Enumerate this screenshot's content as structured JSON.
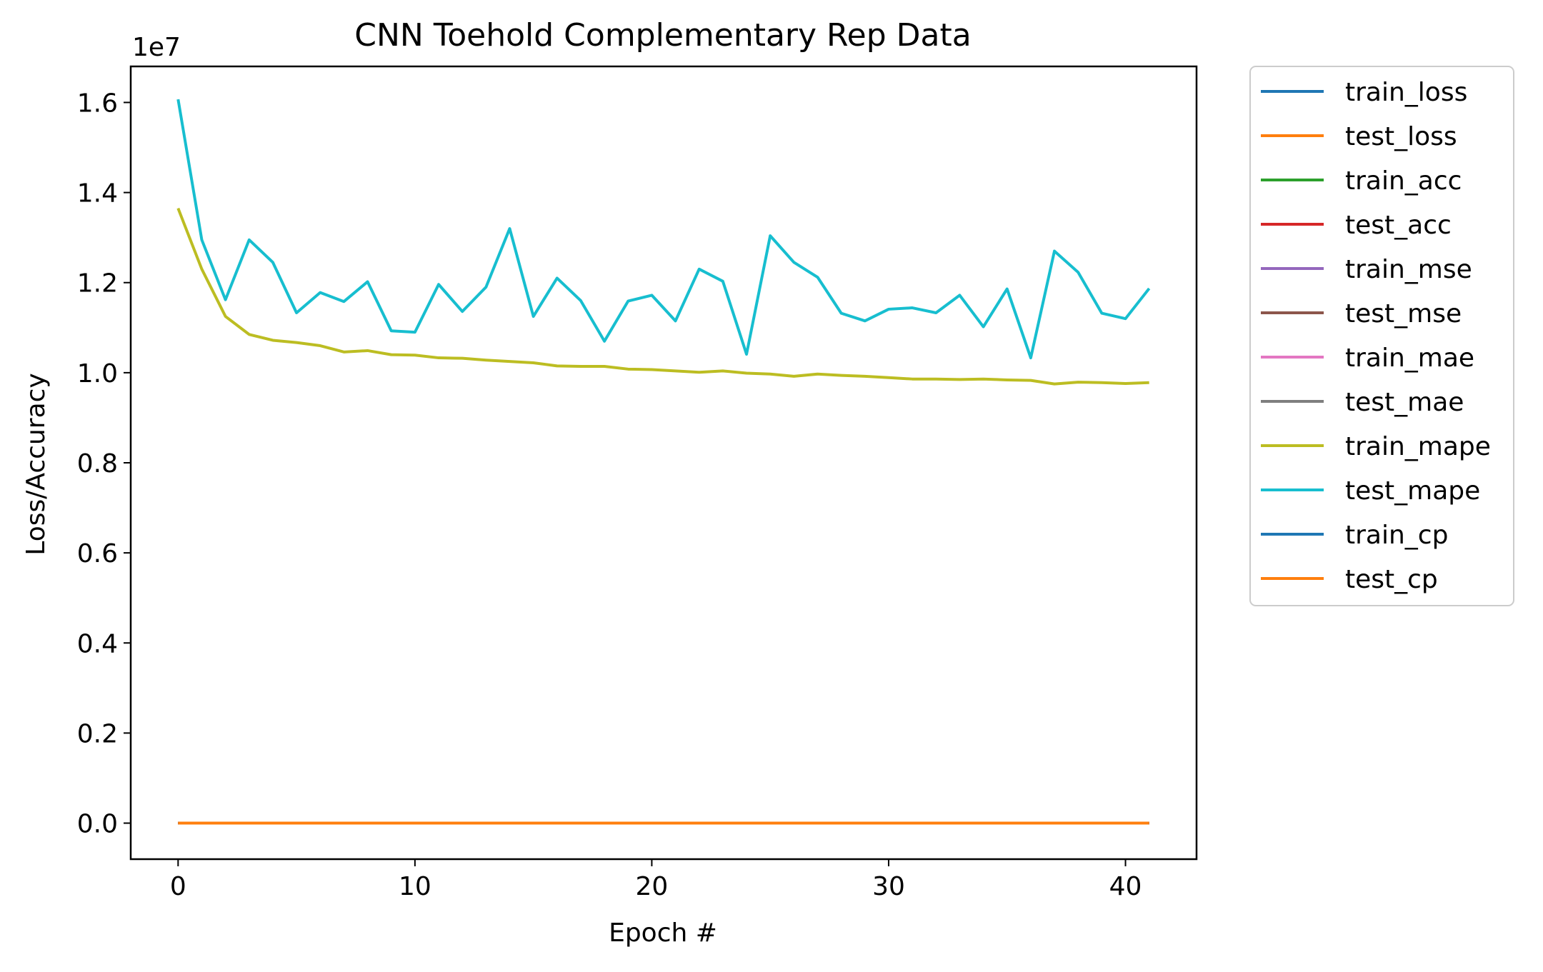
{
  "chart_data": {
    "type": "line",
    "title": "CNN Toehold Complementary Rep Data",
    "xlabel": "Epoch #",
    "ylabel": "Loss/Accuracy",
    "y_offset_label": "1e7",
    "xlim": [
      -2,
      43
    ],
    "ylim": [
      -0.08,
      1.68
    ],
    "x_ticks": [
      0,
      10,
      20,
      30,
      40
    ],
    "x_tick_labels": [
      "0",
      "10",
      "20",
      "30",
      "40"
    ],
    "y_ticks": [
      0.0,
      0.2,
      0.4,
      0.6,
      0.8,
      1.0,
      1.2,
      1.4,
      1.6
    ],
    "y_tick_labels": [
      "0.0",
      "0.2",
      "0.4",
      "0.6",
      "0.8",
      "1.0",
      "1.2",
      "1.4",
      "1.6"
    ],
    "grid": false,
    "legend_position": "outside-right-top",
    "x": [
      0,
      1,
      2,
      3,
      4,
      5,
      6,
      7,
      8,
      9,
      10,
      11,
      12,
      13,
      14,
      15,
      16,
      17,
      18,
      19,
      20,
      21,
      22,
      23,
      24,
      25,
      26,
      27,
      28,
      29,
      30,
      31,
      32,
      33,
      34,
      35,
      36,
      37,
      38,
      39,
      40,
      41
    ],
    "series": [
      {
        "name": "train_loss",
        "color": "#1f77b4",
        "values": [
          0,
          0,
          0,
          0,
          0,
          0,
          0,
          0,
          0,
          0,
          0,
          0,
          0,
          0,
          0,
          0,
          0,
          0,
          0,
          0,
          0,
          0,
          0,
          0,
          0,
          0,
          0,
          0,
          0,
          0,
          0,
          0,
          0,
          0,
          0,
          0,
          0,
          0,
          0,
          0,
          0,
          0
        ]
      },
      {
        "name": "test_loss",
        "color": "#ff7f0e",
        "values": [
          0,
          0,
          0,
          0,
          0,
          0,
          0,
          0,
          0,
          0,
          0,
          0,
          0,
          0,
          0,
          0,
          0,
          0,
          0,
          0,
          0,
          0,
          0,
          0,
          0,
          0,
          0,
          0,
          0,
          0,
          0,
          0,
          0,
          0,
          0,
          0,
          0,
          0,
          0,
          0,
          0,
          0
        ]
      },
      {
        "name": "train_acc",
        "color": "#2ca02c",
        "values": [
          0,
          0,
          0,
          0,
          0,
          0,
          0,
          0,
          0,
          0,
          0,
          0,
          0,
          0,
          0,
          0,
          0,
          0,
          0,
          0,
          0,
          0,
          0,
          0,
          0,
          0,
          0,
          0,
          0,
          0,
          0,
          0,
          0,
          0,
          0,
          0,
          0,
          0,
          0,
          0,
          0,
          0
        ]
      },
      {
        "name": "test_acc",
        "color": "#d62728",
        "values": [
          0,
          0,
          0,
          0,
          0,
          0,
          0,
          0,
          0,
          0,
          0,
          0,
          0,
          0,
          0,
          0,
          0,
          0,
          0,
          0,
          0,
          0,
          0,
          0,
          0,
          0,
          0,
          0,
          0,
          0,
          0,
          0,
          0,
          0,
          0,
          0,
          0,
          0,
          0,
          0,
          0,
          0
        ]
      },
      {
        "name": "train_mse",
        "color": "#9467bd",
        "values": [
          0,
          0,
          0,
          0,
          0,
          0,
          0,
          0,
          0,
          0,
          0,
          0,
          0,
          0,
          0,
          0,
          0,
          0,
          0,
          0,
          0,
          0,
          0,
          0,
          0,
          0,
          0,
          0,
          0,
          0,
          0,
          0,
          0,
          0,
          0,
          0,
          0,
          0,
          0,
          0,
          0,
          0
        ]
      },
      {
        "name": "test_mse",
        "color": "#8c564b",
        "values": [
          0,
          0,
          0,
          0,
          0,
          0,
          0,
          0,
          0,
          0,
          0,
          0,
          0,
          0,
          0,
          0,
          0,
          0,
          0,
          0,
          0,
          0,
          0,
          0,
          0,
          0,
          0,
          0,
          0,
          0,
          0,
          0,
          0,
          0,
          0,
          0,
          0,
          0,
          0,
          0,
          0,
          0
        ]
      },
      {
        "name": "train_mae",
        "color": "#e377c2",
        "values": [
          0,
          0,
          0,
          0,
          0,
          0,
          0,
          0,
          0,
          0,
          0,
          0,
          0,
          0,
          0,
          0,
          0,
          0,
          0,
          0,
          0,
          0,
          0,
          0,
          0,
          0,
          0,
          0,
          0,
          0,
          0,
          0,
          0,
          0,
          0,
          0,
          0,
          0,
          0,
          0,
          0,
          0
        ]
      },
      {
        "name": "test_mae",
        "color": "#7f7f7f",
        "values": [
          0,
          0,
          0,
          0,
          0,
          0,
          0,
          0,
          0,
          0,
          0,
          0,
          0,
          0,
          0,
          0,
          0,
          0,
          0,
          0,
          0,
          0,
          0,
          0,
          0,
          0,
          0,
          0,
          0,
          0,
          0,
          0,
          0,
          0,
          0,
          0,
          0,
          0,
          0,
          0,
          0,
          0
        ]
      },
      {
        "name": "train_mape",
        "color": "#bcbd22",
        "values": [
          1.365,
          1.23,
          1.125,
          1.085,
          1.072,
          1.067,
          1.06,
          1.046,
          1.049,
          1.04,
          1.039,
          1.033,
          1.032,
          1.028,
          1.025,
          1.022,
          1.015,
          1.014,
          1.014,
          1.008,
          1.007,
          1.004,
          1.001,
          1.004,
          0.999,
          0.997,
          0.992,
          0.997,
          0.994,
          0.992,
          0.989,
          0.986,
          0.986,
          0.985,
          0.986,
          0.984,
          0.983,
          0.975,
          0.979,
          0.978,
          0.976,
          0.978
        ]
      },
      {
        "name": "test_mape",
        "color": "#17becf",
        "values": [
          1.607,
          1.295,
          1.162,
          1.295,
          1.245,
          1.133,
          1.178,
          1.158,
          1.202,
          1.093,
          1.09,
          1.196,
          1.136,
          1.19,
          1.32,
          1.125,
          1.21,
          1.16,
          1.07,
          1.159,
          1.172,
          1.115,
          1.23,
          1.203,
          1.041,
          1.304,
          1.245,
          1.212,
          1.132,
          1.115,
          1.141,
          1.144,
          1.133,
          1.172,
          1.102,
          1.186,
          1.033,
          1.27,
          1.223,
          1.132,
          1.12,
          1.187
        ]
      },
      {
        "name": "train_cp",
        "color": "#1f77b4",
        "values": [
          0,
          0,
          0,
          0,
          0,
          0,
          0,
          0,
          0,
          0,
          0,
          0,
          0,
          0,
          0,
          0,
          0,
          0,
          0,
          0,
          0,
          0,
          0,
          0,
          0,
          0,
          0,
          0,
          0,
          0,
          0,
          0,
          0,
          0,
          0,
          0,
          0,
          0,
          0,
          0,
          0,
          0
        ]
      },
      {
        "name": "test_cp",
        "color": "#ff7f0e",
        "values": [
          0,
          0,
          0,
          0,
          0,
          0,
          0,
          0,
          0,
          0,
          0,
          0,
          0,
          0,
          0,
          0,
          0,
          0,
          0,
          0,
          0,
          0,
          0,
          0,
          0,
          0,
          0,
          0,
          0,
          0,
          0,
          0,
          0,
          0,
          0,
          0,
          0,
          0,
          0,
          0,
          0,
          0
        ]
      }
    ]
  }
}
